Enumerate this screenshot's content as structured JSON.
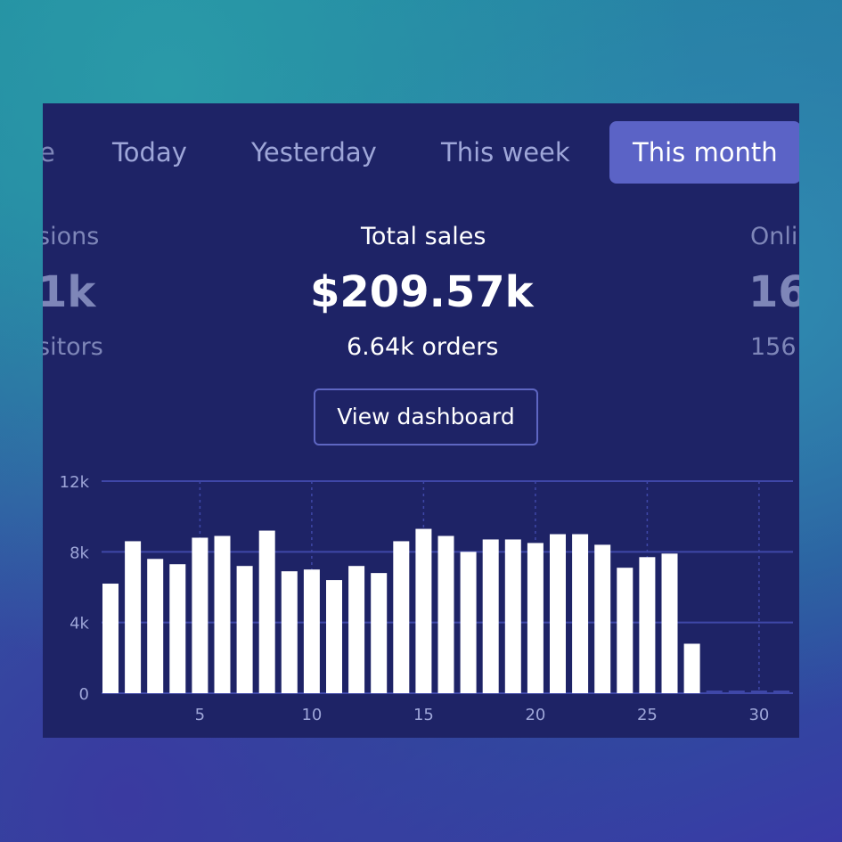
{
  "tabs": {
    "partial": "e",
    "today": "Today",
    "yesterday": "Yesterday",
    "this_week": "This week",
    "this_month": "This month"
  },
  "left_stat": {
    "label": "sions",
    "value": "1k",
    "sub": "sitors"
  },
  "main_stat": {
    "label": "Total sales",
    "value": "$209.57k",
    "sub": "6.64k orders"
  },
  "right_stat": {
    "label": "Onli",
    "value": "16",
    "sub": "156"
  },
  "actions": {
    "view_dashboard": "View dashboard"
  },
  "colors": {
    "panel": "#1e2366",
    "active_tab": "#5b63c6",
    "bars": "#ffffff",
    "grid": "#3f47a8",
    "axis_text": "#9ea6d8"
  },
  "chart_data": {
    "type": "bar",
    "x": [
      1,
      2,
      3,
      4,
      5,
      6,
      7,
      8,
      9,
      10,
      11,
      12,
      13,
      14,
      15,
      16,
      17,
      18,
      19,
      20,
      21,
      22,
      23,
      24,
      25,
      26,
      27,
      28,
      29,
      30,
      31
    ],
    "values": [
      6200,
      8600,
      7600,
      7300,
      8800,
      8900,
      7200,
      9200,
      6900,
      7000,
      6400,
      7200,
      6800,
      8600,
      9300,
      8900,
      8000,
      8700,
      8700,
      8500,
      9000,
      9000,
      8400,
      7100,
      7700,
      7900,
      2800,
      150,
      150,
      150,
      150
    ],
    "ylim": [
      0,
      12000
    ],
    "yticks": [
      0,
      4000,
      8000,
      12000
    ],
    "ytick_labels": [
      "0",
      "4k",
      "8k",
      "12k"
    ],
    "xticks": [
      5,
      10,
      15,
      20,
      25,
      30
    ],
    "xtick_labels": [
      "5",
      "10",
      "15",
      "20",
      "25",
      "30"
    ],
    "grid": true,
    "title": "",
    "xlabel": "",
    "ylabel": ""
  }
}
